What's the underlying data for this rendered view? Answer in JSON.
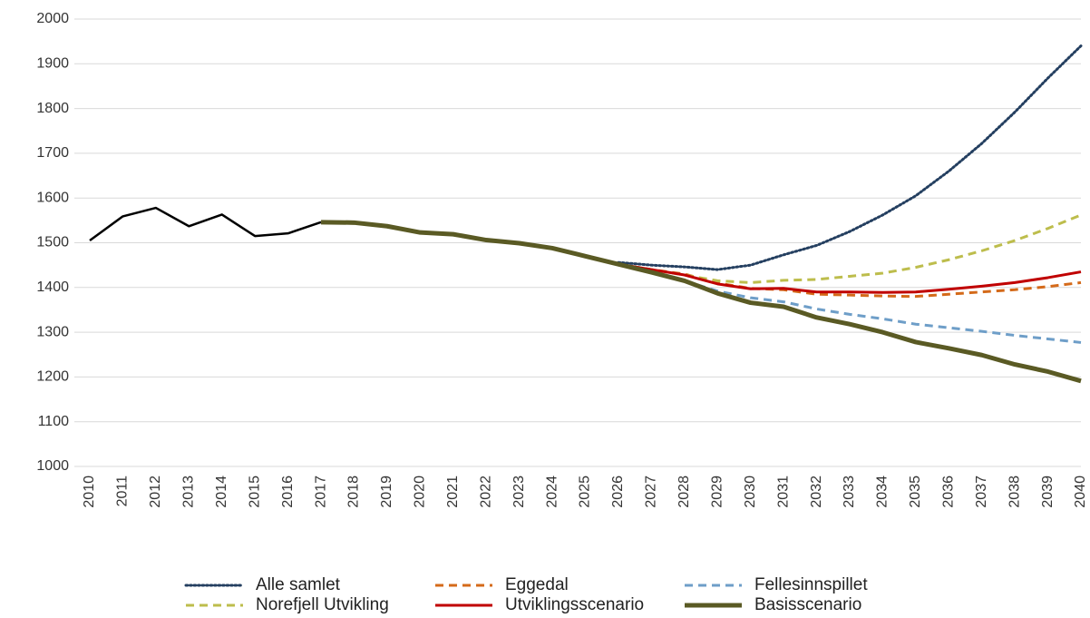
{
  "chart_data": {
    "type": "line",
    "categories": [
      "2010",
      "2011",
      "2012",
      "2013",
      "2014",
      "2015",
      "2016",
      "2017",
      "2018",
      "2019",
      "2020",
      "2021",
      "2022",
      "2023",
      "2024",
      "2025",
      "2026",
      "2027",
      "2028",
      "2029",
      "2030",
      "2031",
      "2032",
      "2033",
      "2034",
      "2035",
      "2036",
      "2037",
      "2038",
      "2039",
      "2040"
    ],
    "ylim": [
      1000,
      2000
    ],
    "yticks": [
      1000,
      1100,
      1200,
      1300,
      1400,
      1500,
      1600,
      1700,
      1800,
      1900,
      2000
    ],
    "grid": true,
    "series": [
      {
        "color": "#000000",
        "style": "solid",
        "width": 2.5,
        "values": [
          1505,
          1559,
          1578,
          1537,
          1563,
          1515,
          1521,
          1546,
          null,
          null,
          null,
          null,
          null,
          null,
          null,
          null,
          null,
          null,
          null,
          null,
          null,
          null,
          null,
          null,
          null,
          null,
          null,
          null,
          null,
          null,
          null
        ]
      },
      {
        "name": "Alle samlet",
        "color": "#243f60",
        "style": "dotted",
        "width": 3,
        "values": [
          null,
          null,
          null,
          null,
          null,
          null,
          null,
          null,
          null,
          null,
          null,
          null,
          null,
          null,
          null,
          null,
          1456,
          1450,
          1446,
          1440,
          1450,
          1473,
          1494,
          1525,
          1562,
          1605,
          1660,
          1722,
          1792,
          1868,
          1940
        ]
      },
      {
        "name": "Eggedal",
        "color": "#d46a1a",
        "style": "dashed",
        "width": 3,
        "values": [
          null,
          null,
          null,
          null,
          null,
          null,
          null,
          null,
          null,
          null,
          null,
          null,
          null,
          null,
          null,
          null,
          1452,
          1440,
          1430,
          1410,
          1398,
          1395,
          1385,
          1383,
          1381,
          1380,
          1385,
          1390,
          1395,
          1402,
          1411
        ]
      },
      {
        "name": "Fellesinnspillet",
        "color": "#6e9ec8",
        "style": "dashed",
        "width": 3,
        "values": [
          null,
          null,
          null,
          null,
          null,
          null,
          null,
          null,
          null,
          null,
          null,
          null,
          null,
          null,
          null,
          null,
          1452,
          1434,
          1415,
          1392,
          1377,
          1368,
          1352,
          1340,
          1330,
          1318,
          1310,
          1302,
          1293,
          1285,
          1277
        ]
      },
      {
        "name": "Norefjell Utvikling",
        "color": "#bdbd4c",
        "style": "dashed",
        "width": 3,
        "values": [
          null,
          null,
          null,
          null,
          null,
          null,
          null,
          null,
          null,
          null,
          null,
          null,
          null,
          null,
          null,
          null,
          1452,
          1440,
          1428,
          1415,
          1411,
          1416,
          1418,
          1425,
          1432,
          1445,
          1462,
          1482,
          1505,
          1532,
          1562
        ]
      },
      {
        "name": "Utviklingsscenario",
        "color": "#c00000",
        "style": "solid",
        "width": 3,
        "values": [
          null,
          null,
          null,
          null,
          null,
          null,
          null,
          null,
          null,
          null,
          null,
          null,
          null,
          null,
          null,
          null,
          1452,
          1440,
          1428,
          1408,
          1397,
          1398,
          1390,
          1390,
          1389,
          1390,
          1396,
          1403,
          1411,
          1422,
          1435
        ]
      },
      {
        "name": "Basisscenario",
        "color": "#5a5a24",
        "style": "solid",
        "width": 5,
        "values": [
          null,
          null,
          null,
          null,
          null,
          null,
          null,
          1546,
          1545,
          1537,
          1523,
          1519,
          1506,
          1499,
          1488,
          1470,
          1452,
          1434,
          1415,
          1387,
          1366,
          1357,
          1333,
          1318,
          1300,
          1278,
          1264,
          1249,
          1228,
          1212,
          1191
        ]
      }
    ]
  }
}
